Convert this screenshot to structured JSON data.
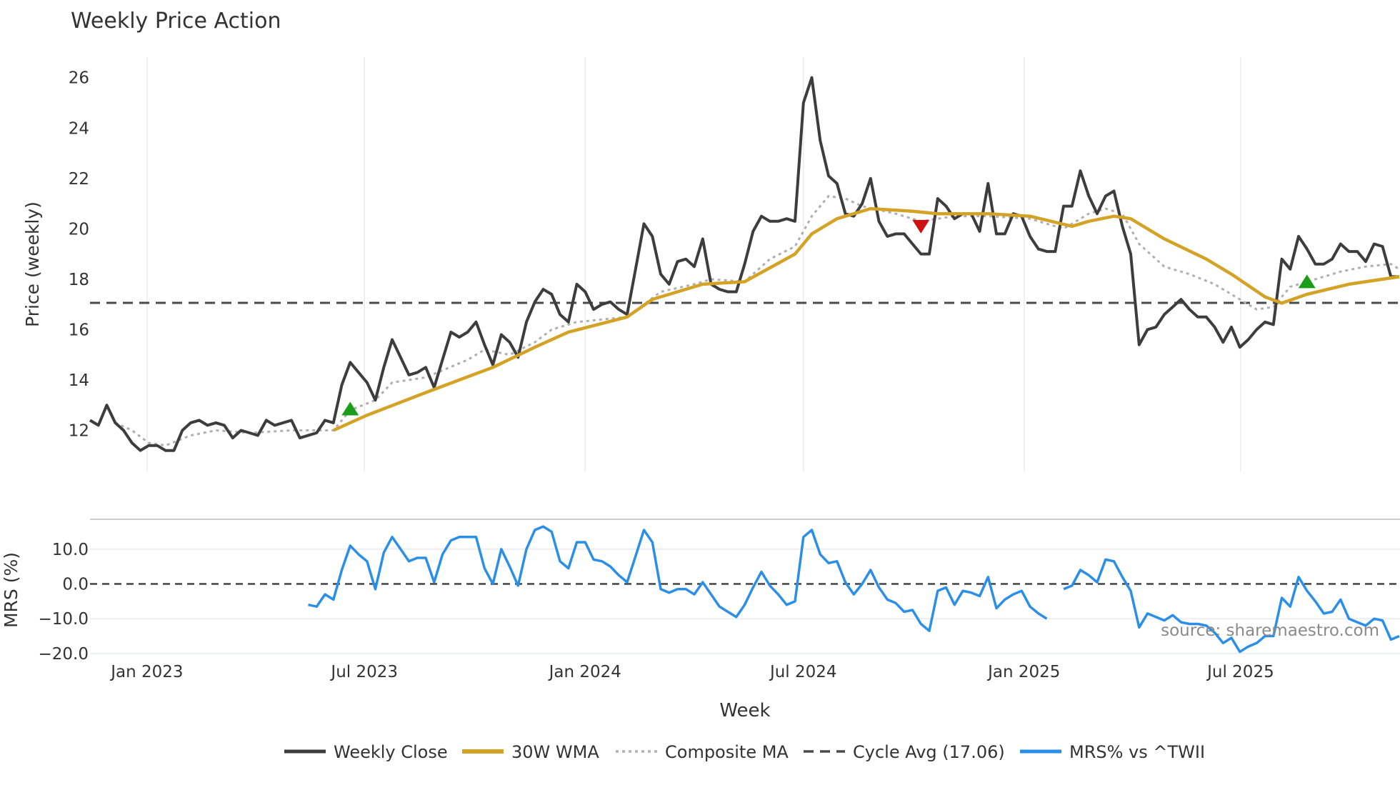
{
  "chart_data": {
    "type": "line",
    "title": "Weekly Price Action",
    "xlabel": "Week",
    "x_start": "2022-11-14",
    "x_frequency": "weekly",
    "x_ticks": [
      "Jan 2023",
      "Jul 2023",
      "Jan 2024",
      "Jul 2024",
      "Jan 2025",
      "Jul 2025"
    ],
    "x_tick_weeks": [
      6.8,
      32.7,
      59,
      85,
      111.3,
      137.1
    ],
    "price_panel": {
      "ylabel": "Price (weekly)",
      "ylim": [
        10.6,
        26.8
      ],
      "y_ticks": [
        "12",
        "14",
        "16",
        "18",
        "20",
        "22",
        "24",
        "26"
      ],
      "grid": "vertical",
      "cycle_avg": 17.06,
      "series": [
        {
          "name": "Weekly Close",
          "color": "#3d3d3d",
          "values": [
            12.4,
            12.2,
            13.0,
            12.3,
            12.0,
            11.5,
            11.2,
            11.4,
            11.4,
            11.2,
            11.2,
            12.0,
            12.3,
            12.4,
            12.2,
            12.3,
            12.2,
            11.7,
            12.0,
            11.9,
            11.8,
            12.4,
            12.2,
            12.3,
            12.4,
            11.7,
            11.8,
            11.9,
            12.4,
            12.3,
            13.8,
            14.7,
            14.3,
            13.9,
            13.2,
            14.5,
            15.6,
            14.9,
            14.2,
            14.3,
            14.5,
            13.7,
            14.8,
            15.9,
            15.7,
            15.9,
            16.3,
            15.4,
            14.6,
            15.8,
            15.5,
            14.9,
            16.3,
            17.1,
            17.6,
            17.4,
            16.6,
            16.3,
            17.8,
            17.5,
            16.8,
            17.0,
            17.1,
            16.8,
            16.6,
            18.4,
            20.2,
            19.7,
            18.2,
            17.8,
            18.7,
            18.8,
            18.5,
            19.6,
            17.8,
            17.6,
            17.5,
            17.5,
            18.6,
            19.9,
            20.5,
            20.3,
            20.3,
            20.4,
            20.3,
            25.0,
            26.0,
            23.5,
            22.1,
            21.8,
            20.6,
            20.5,
            21.0,
            22.0,
            20.3,
            19.7,
            19.8,
            19.8,
            19.4,
            19.0,
            19.0,
            21.2,
            20.9,
            20.4,
            20.6,
            20.6,
            19.9,
            21.8,
            19.8,
            19.8,
            20.6,
            20.5,
            19.7,
            19.2,
            19.1,
            19.1,
            20.9,
            20.9,
            22.3,
            21.3,
            20.6,
            21.3,
            21.5,
            20.1,
            19.0,
            15.4,
            16.0,
            16.1,
            16.6,
            16.9,
            17.2,
            16.8,
            16.5,
            16.5,
            16.1,
            15.5,
            16.1,
            15.3,
            15.6,
            16.0,
            16.3,
            16.2,
            18.8,
            18.4,
            19.7,
            19.2,
            18.6,
            18.6,
            18.8,
            19.4,
            19.1,
            19.1,
            18.7,
            19.4,
            19.3,
            18.1,
            18.1
          ]
        },
        {
          "name": "30W WMA",
          "color": "#d4a326",
          "points": [
            [
              29,
              12.0
            ],
            [
              33,
              12.6
            ],
            [
              40,
              13.5
            ],
            [
              48,
              14.5
            ],
            [
              53,
              15.3
            ],
            [
              57,
              15.9
            ],
            [
              64,
              16.5
            ],
            [
              67,
              17.2
            ],
            [
              73,
              17.8
            ],
            [
              78,
              17.9
            ],
            [
              84,
              19.0
            ],
            [
              86,
              19.8
            ],
            [
              89,
              20.4
            ],
            [
              93,
              20.8
            ],
            [
              98,
              20.7
            ],
            [
              101,
              20.6
            ],
            [
              107,
              20.6
            ],
            [
              112,
              20.5
            ],
            [
              117,
              20.1
            ],
            [
              119,
              20.3
            ],
            [
              122,
              20.5
            ],
            [
              124,
              20.4
            ],
            [
              128,
              19.6
            ],
            [
              133,
              18.8
            ],
            [
              136,
              18.2
            ],
            [
              140,
              17.3
            ],
            [
              142,
              17.05
            ],
            [
              145,
              17.4
            ],
            [
              150,
              17.8
            ],
            [
              156,
              18.1
            ]
          ]
        },
        {
          "name": "Composite MA",
          "color": "#b0b0b0",
          "points": [
            [
              3,
              12.3
            ],
            [
              5,
              12.0
            ],
            [
              7,
              11.5
            ],
            [
              9,
              11.4
            ],
            [
              12,
              11.8
            ],
            [
              15,
              12.0
            ],
            [
              19,
              11.9
            ],
            [
              24,
              12.0
            ],
            [
              29,
              12.0
            ],
            [
              31,
              12.8
            ],
            [
              34,
              13.2
            ],
            [
              36,
              13.9
            ],
            [
              40,
              14.1
            ],
            [
              45,
              14.8
            ],
            [
              47,
              15.2
            ],
            [
              50,
              15.0
            ],
            [
              53,
              15.5
            ],
            [
              55,
              16.0
            ],
            [
              58,
              16.3
            ],
            [
              64,
              16.5
            ],
            [
              68,
              17.5
            ],
            [
              72,
              17.8
            ],
            [
              74,
              18.0
            ],
            [
              78,
              17.9
            ],
            [
              81,
              18.8
            ],
            [
              84,
              19.3
            ],
            [
              86,
              20.5
            ],
            [
              88,
              21.3
            ],
            [
              90,
              21.2
            ],
            [
              92,
              20.9
            ],
            [
              96,
              20.6
            ],
            [
              99,
              20.3
            ],
            [
              103,
              20.5
            ],
            [
              107,
              20.5
            ],
            [
              112,
              20.4
            ],
            [
              116,
              20.0
            ],
            [
              119,
              20.6
            ],
            [
              121,
              20.8
            ],
            [
              123,
              20.6
            ],
            [
              125,
              19.4
            ],
            [
              128,
              18.5
            ],
            [
              131,
              18.2
            ],
            [
              134,
              17.8
            ],
            [
              137,
              17.2
            ],
            [
              139,
              16.8
            ],
            [
              141,
              16.9
            ],
            [
              143,
              17.7
            ],
            [
              146,
              18.0
            ],
            [
              149,
              18.3
            ],
            [
              152,
              18.5
            ],
            [
              155,
              18.6
            ],
            [
              156,
              18.4
            ]
          ]
        },
        {
          "name": "Cycle Avg (17.06)",
          "color": "#4a4a4a"
        }
      ],
      "signals": [
        {
          "type": "buy",
          "week": 31,
          "value": 12.85,
          "color": "#1a9e1a"
        },
        {
          "type": "sell",
          "week": 99,
          "value": 20.1,
          "color": "#cc1111"
        },
        {
          "type": "buy",
          "week": 145,
          "value": 17.9,
          "color": "#1a9e1a"
        }
      ]
    },
    "mrs_panel": {
      "ylabel": "MRS (%)",
      "ylim": [
        -21,
        18
      ],
      "y_ticks": [
        "10.0",
        "0.0",
        "−10.0",
        "−20.0"
      ],
      "y_tick_values": [
        10,
        0,
        -10,
        -20
      ],
      "series": [
        {
          "name": "MRS% vs ^TWII",
          "color": "#2b8fe8",
          "start_week": 26,
          "values": [
            -6,
            -6.5,
            -3,
            -4.5,
            4,
            11,
            8.5,
            6.5,
            -1.5,
            9,
            13.5,
            10,
            6.5,
            7.5,
            7.5,
            0.5,
            8.5,
            12.5,
            13.5,
            13.5,
            13.5,
            4.5,
            0,
            10,
            5,
            -0.5,
            10,
            15.5,
            16.5,
            15,
            6.5,
            4.5,
            12,
            12,
            7,
            6.5,
            5,
            2.5,
            0.5,
            8,
            15.5,
            12,
            -1.5,
            -2.5,
            -1.5,
            -1.5,
            -3,
            0.5,
            -3,
            -6.5,
            -8,
            -9.5,
            -6,
            -1,
            3.5,
            -0.5,
            -3,
            -6,
            -5,
            13.5,
            15.5,
            8.5,
            6,
            6.5,
            0.5,
            -3,
            0,
            4,
            -1,
            -4.5,
            -5.5,
            -8,
            -7.5,
            -11.5,
            -13.5,
            -2,
            -1,
            -6,
            -2,
            -2.5,
            -3.5,
            2,
            -7,
            -4.5,
            -3,
            -2,
            -6.5,
            -8.5,
            -10,
            null,
            -1.5,
            -0.5,
            4,
            2.5,
            0.5,
            7,
            6.5,
            2,
            -2,
            -12.5,
            -8.5,
            -9.5,
            -10.5,
            -9,
            -11,
            -11.5,
            -11.5,
            -12,
            -14,
            -17,
            -15.5,
            -19.5,
            -18,
            -17,
            -15,
            -15,
            -4,
            -6.5,
            2,
            -2,
            -5,
            -8.5,
            -8,
            -4.5,
            -10,
            -11,
            -12,
            -10,
            -10.5,
            -16,
            -15
          ]
        }
      ]
    },
    "legend": {
      "placement": "bottom-center",
      "entries": [
        "Weekly Close",
        "30W WMA",
        "Composite MA",
        "Cycle Avg (17.06)",
        "MRS% vs ^TWII"
      ]
    },
    "annotation": "source: sharemaestro.com"
  }
}
